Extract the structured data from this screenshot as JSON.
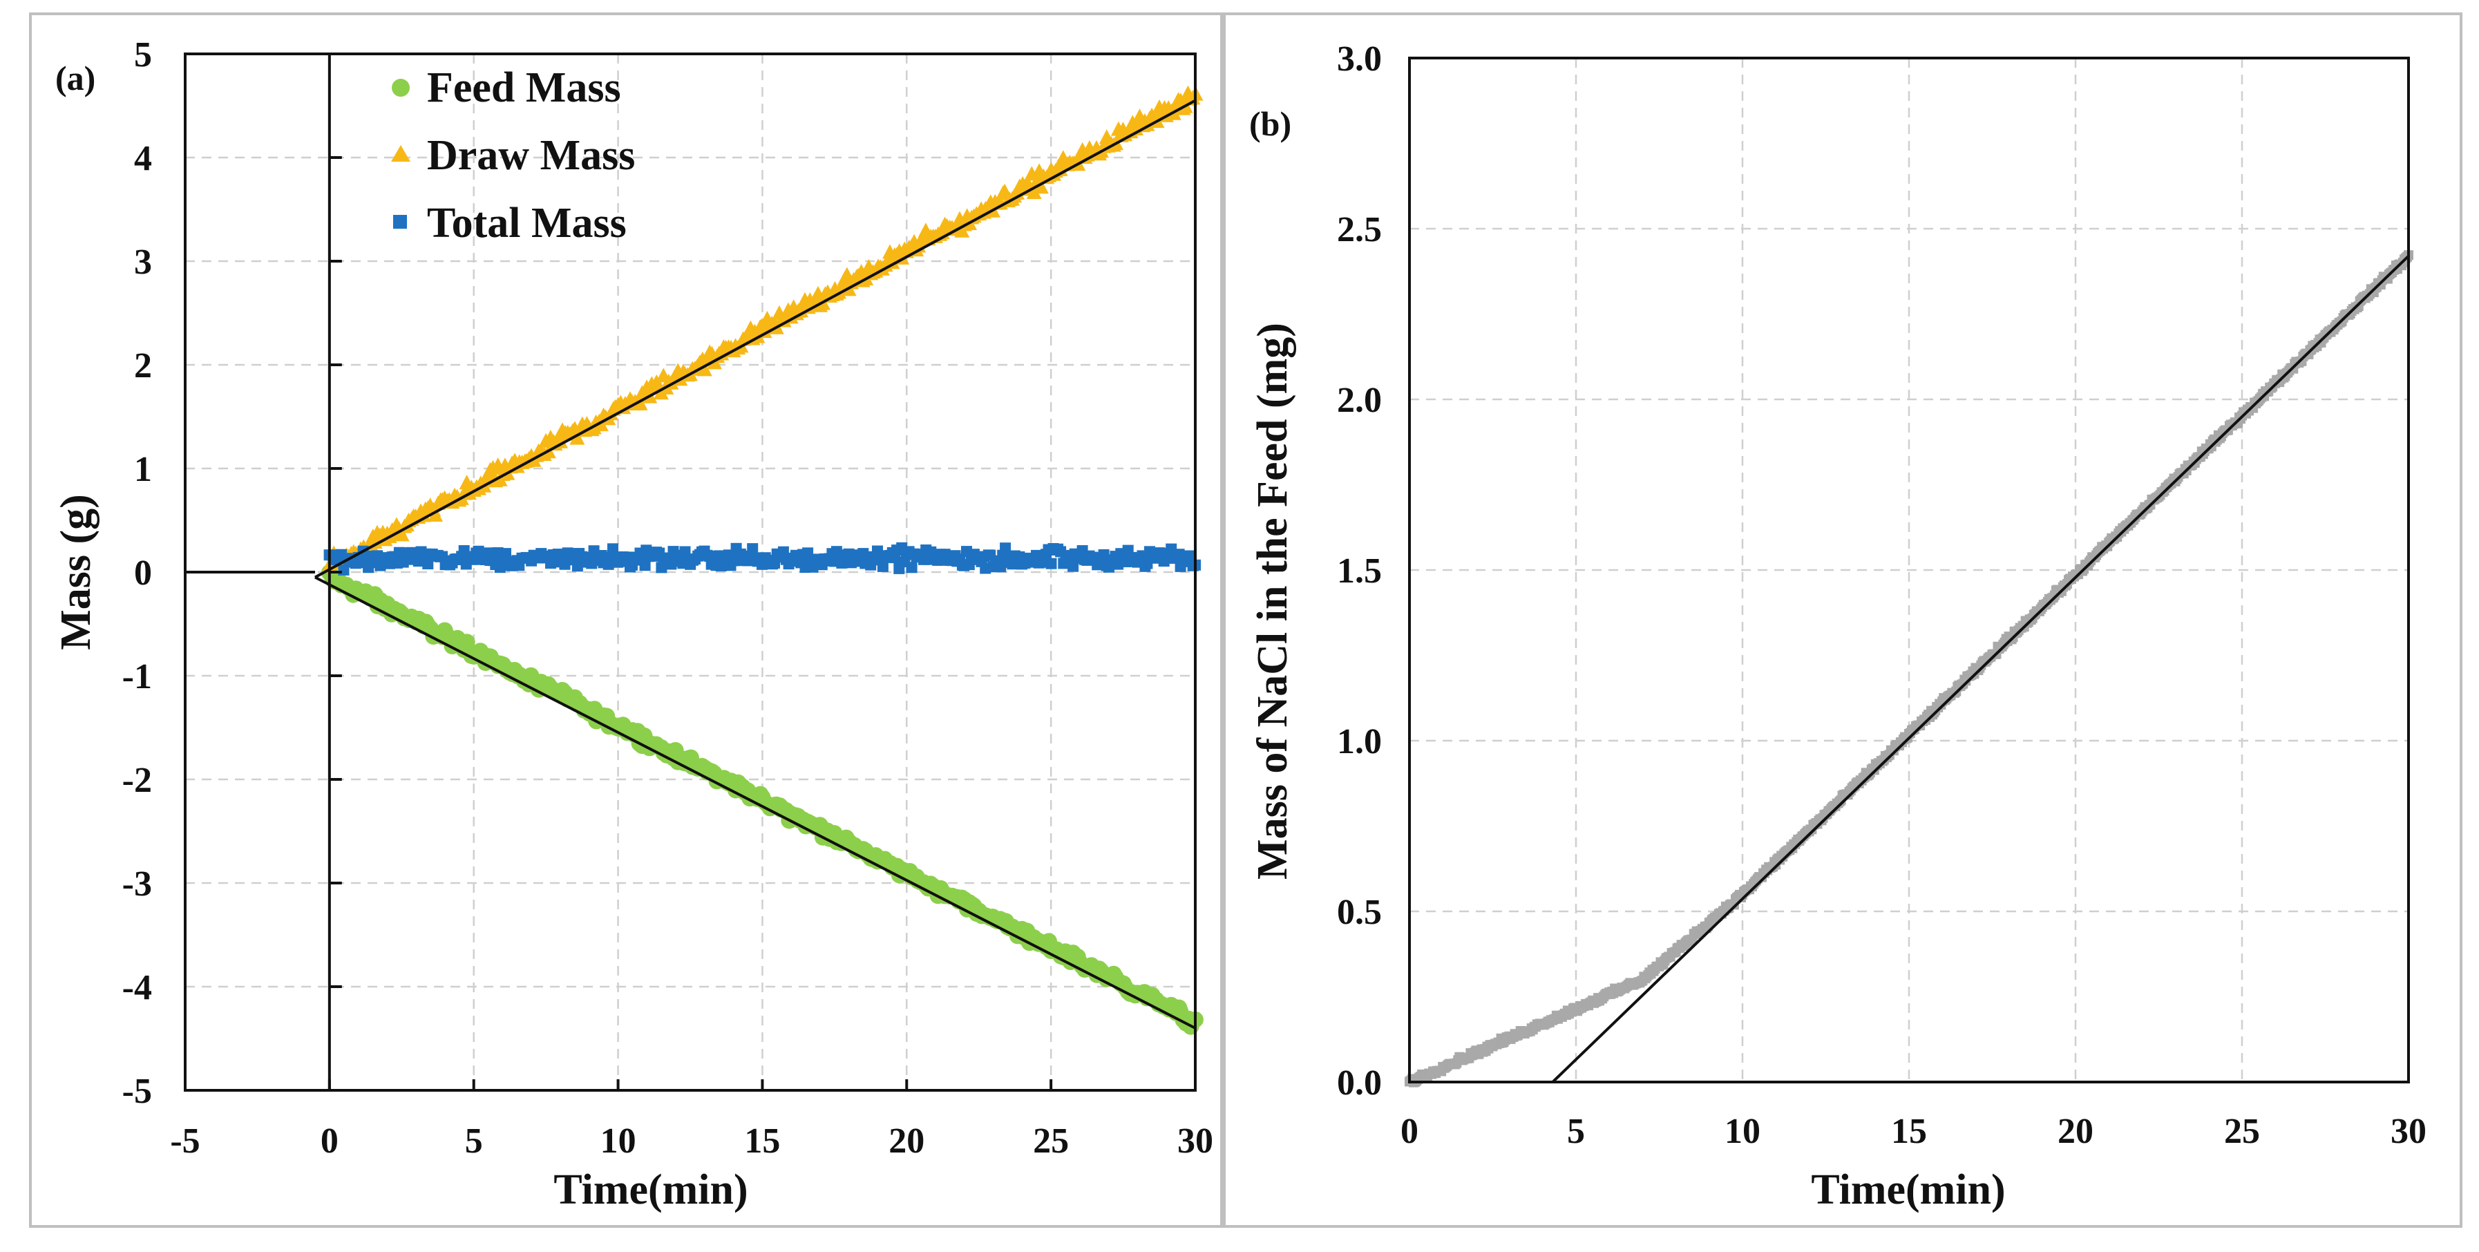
{
  "colors": {
    "feed": "#8ccf4b",
    "draw": "#f7b816",
    "total": "#1f72c2",
    "nacl": "#a9a9a9",
    "fit": "#111111"
  },
  "chart_data": [
    {
      "type": "scatter",
      "panel_label": "(a)",
      "xlabel": "Time(min)",
      "ylabel": "Mass (g)",
      "xlim": [
        -5,
        30
      ],
      "ylim": [
        -5,
        5
      ],
      "xticks": [
        "-5",
        "0",
        "5",
        "10",
        "15",
        "20",
        "25",
        "30"
      ],
      "yticks": [
        "5",
        "4",
        "3",
        "2",
        "1",
        "0",
        "-1",
        "-2",
        "-3",
        "-4",
        "-5"
      ],
      "grid": true,
      "legend_position": "top-left",
      "series": [
        {
          "name": "Feed Mass",
          "marker": "circle",
          "color_key": "feed",
          "x_start": 0,
          "x_end": 30,
          "slope": -0.143,
          "intercept": -0.05,
          "noise": 0.08
        },
        {
          "name": "Draw Mass",
          "marker": "triangle",
          "color_key": "draw",
          "x_start": 0,
          "x_end": 30,
          "slope": 0.152,
          "intercept": 0.05,
          "noise": 0.12
        },
        {
          "name": "Total Mass",
          "marker": "square",
          "color_key": "total",
          "x_start": 0,
          "x_end": 30,
          "slope": 0.0,
          "intercept": 0.13,
          "noise": 0.13
        }
      ],
      "fit_lines": [
        {
          "name": "Draw fit",
          "x": [
            -0.5,
            30
          ],
          "y": [
            -0.05,
            4.55
          ]
        },
        {
          "name": "Feed fit",
          "x": [
            -0.5,
            30
          ],
          "y": [
            -0.05,
            -4.4
          ]
        },
        {
          "name": "Baseline",
          "x": [
            -5,
            -0.5
          ],
          "y": [
            0,
            0
          ]
        }
      ]
    },
    {
      "type": "scatter",
      "panel_label": "(b)",
      "xlabel": "Time(min)",
      "ylabel": "Mass of NaCl in the Feed (mg)",
      "xlim": [
        0,
        30
      ],
      "ylim": [
        0,
        3.0
      ],
      "xticks": [
        "0",
        "5",
        "10",
        "15",
        "20",
        "25",
        "30"
      ],
      "yticks": [
        "3.0",
        "2.5",
        "2.0",
        "1.5",
        "1.0",
        "0.5",
        "0.0"
      ],
      "grid": true,
      "series": [
        {
          "name": "Mass of NaCl in the Feed",
          "marker": "square",
          "color_key": "nacl",
          "breakpoints_x": [
            0,
            7,
            10,
            30
          ],
          "breakpoints_y": [
            0,
            0.3,
            0.55,
            2.42
          ],
          "noise": 0.012
        }
      ],
      "fit_lines": [
        {
          "name": "Linear fit",
          "x": [
            4.3,
            30
          ],
          "y": [
            0,
            2.42
          ]
        }
      ]
    }
  ]
}
